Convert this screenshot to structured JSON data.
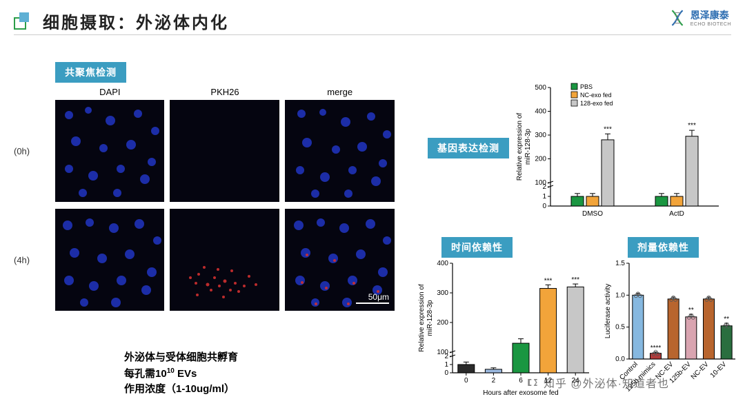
{
  "slide": {
    "title": "细胞摄取：外泌体内化",
    "company_cn": "恩泽康泰",
    "company_en": "ECHO BIOTECH"
  },
  "tags": {
    "confocal": "共聚焦检测",
    "gene": "基因表达检测",
    "time": "时间依赖性",
    "dose": "剂量依赖性"
  },
  "confocal": {
    "columns": [
      "DAPI",
      "PKH26",
      "merge"
    ],
    "rows": [
      "(0h)",
      "(4h)"
    ],
    "scalebar": "50μm",
    "caption_line1": "外泌体与受体细胞共孵育",
    "caption_line2_a": "每孔需10",
    "caption_line2_sup": "10",
    "caption_line2_b": " EVs",
    "caption_line3": "作用浓度（1-10ug/ml）"
  },
  "gene_chart": {
    "type": "grouped-bar",
    "ylabel": "Relative expression of\nmiR-128-3p",
    "ylim": [
      0,
      500
    ],
    "yticks": [
      0,
      1,
      2,
      100,
      200,
      300,
      400,
      500
    ],
    "groups": [
      "DMSO",
      "ActD"
    ],
    "series": [
      {
        "name": "PBS",
        "color": "#1a9641",
        "values": [
          1.0,
          1.0
        ],
        "err": [
          0.3,
          0.3
        ]
      },
      {
        "name": "NC-exo fed",
        "color": "#f2a43a",
        "values": [
          1.0,
          1.0
        ],
        "err": [
          0.3,
          0.3
        ]
      },
      {
        "name": "128-exo fed",
        "color": "#c7c7c7",
        "values": [
          280,
          295
        ],
        "err": [
          25,
          25
        ],
        "sig": [
          "***",
          "***"
        ]
      }
    ],
    "title_fontsize": 10,
    "label_fontsize": 10,
    "background": "#ffffff"
  },
  "time_chart": {
    "type": "bar",
    "ylabel": "Relative expression of\nmiR-128-3p",
    "xlabel": "Hours after exosome fed",
    "ylim": [
      0,
      400
    ],
    "yticks": [
      0,
      1,
      2,
      100,
      200,
      300,
      400
    ],
    "categories": [
      "0",
      "2",
      "6",
      "12",
      "24"
    ],
    "values": [
      1,
      42,
      130,
      315,
      320
    ],
    "err": [
      0.3,
      5,
      15,
      12,
      10
    ],
    "sig": [
      "",
      "",
      "",
      "***",
      "***"
    ],
    "colors": [
      "#2b2b2b",
      "#9bb9e0",
      "#1a9641",
      "#f2a43a",
      "#c7c7c7"
    ],
    "background": "#ffffff"
  },
  "dose_chart": {
    "type": "bar-jitter",
    "ylabel": "Luciferase activity",
    "ylim": [
      0.0,
      1.5
    ],
    "yticks": [
      0.0,
      0.5,
      1.0,
      1.5
    ],
    "categories": [
      "Control",
      "125b mimics",
      "NC-EV",
      "125b-EV",
      "NC-EV",
      "10-EV"
    ],
    "values": [
      1.0,
      0.09,
      0.94,
      0.66,
      0.94,
      0.52
    ],
    "err": [
      0.03,
      0.02,
      0.03,
      0.04,
      0.03,
      0.04
    ],
    "sig": [
      "",
      "****",
      "",
      "**",
      "",
      "**"
    ],
    "colors": [
      "#86b8e0",
      "#b43a3a",
      "#b8652e",
      "#d9a4b0",
      "#b8652e",
      "#2a6e3f"
    ],
    "marker_color": "#555",
    "marker_size": 2.5,
    "background": "#ffffff"
  },
  "watermark": "知乎 @外泌体·知道者也"
}
